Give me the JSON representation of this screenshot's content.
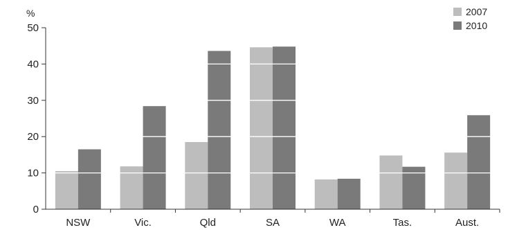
{
  "chart_data": {
    "type": "bar",
    "title": "",
    "xlabel": "",
    "ylabel": "%",
    "ylim": [
      0,
      50
    ],
    "yticks": [
      0,
      10,
      20,
      30,
      40,
      50
    ],
    "categories": [
      "NSW",
      "Vic.",
      "Qld",
      "SA",
      "WA",
      "Tas.",
      "Aust."
    ],
    "series": [
      {
        "name": "2007",
        "color": "#bdbdbd",
        "values": [
          10.5,
          11.8,
          18.5,
          44.6,
          8.2,
          14.8,
          15.6
        ]
      },
      {
        "name": "2010",
        "color": "#7a7a7a",
        "values": [
          16.5,
          28.4,
          43.6,
          44.8,
          8.4,
          11.7,
          25.9
        ]
      }
    ],
    "grid": "white gridlines drawn over bars",
    "legend_position": "top-right"
  }
}
